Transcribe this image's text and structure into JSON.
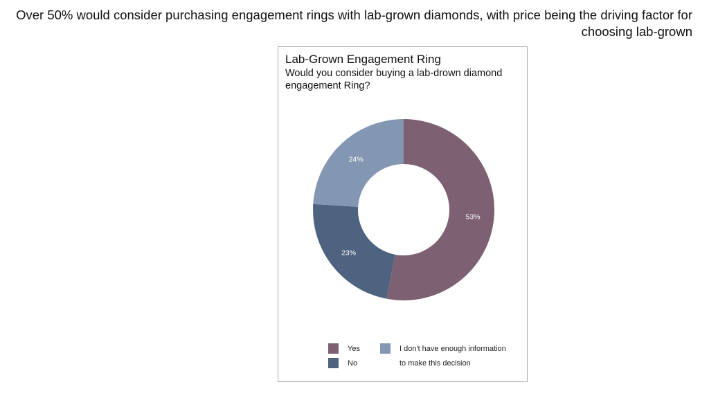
{
  "headline": "Over 50% would consider purchasing engagement rings with lab-grown diamonds, with price being the driving factor for choosing lab-grown",
  "chart_data": {
    "type": "pie",
    "variant": "donut",
    "title": "Lab-Grown Engagement Ring",
    "subtitle": "Would you consider buying a lab-drown diamond engagement Ring?",
    "slices": [
      {
        "label": "Yes",
        "value": 53,
        "display": "53%",
        "color": "#7d6173"
      },
      {
        "label": "No",
        "value": 23,
        "display": "23%",
        "color": "#4e6380"
      },
      {
        "label": "I don't have enough information to make this decision",
        "value": 24,
        "display": "24%",
        "color": "#8397b3"
      }
    ],
    "legend": {
      "placement": "bottom",
      "entries": [
        {
          "label": "Yes",
          "color": "#7d6173"
        },
        {
          "label": "No",
          "color": "#4e6380"
        },
        {
          "label_line1": "I don't have enough information",
          "label_line2": "to make this decision",
          "color": "#8397b3"
        }
      ]
    }
  }
}
